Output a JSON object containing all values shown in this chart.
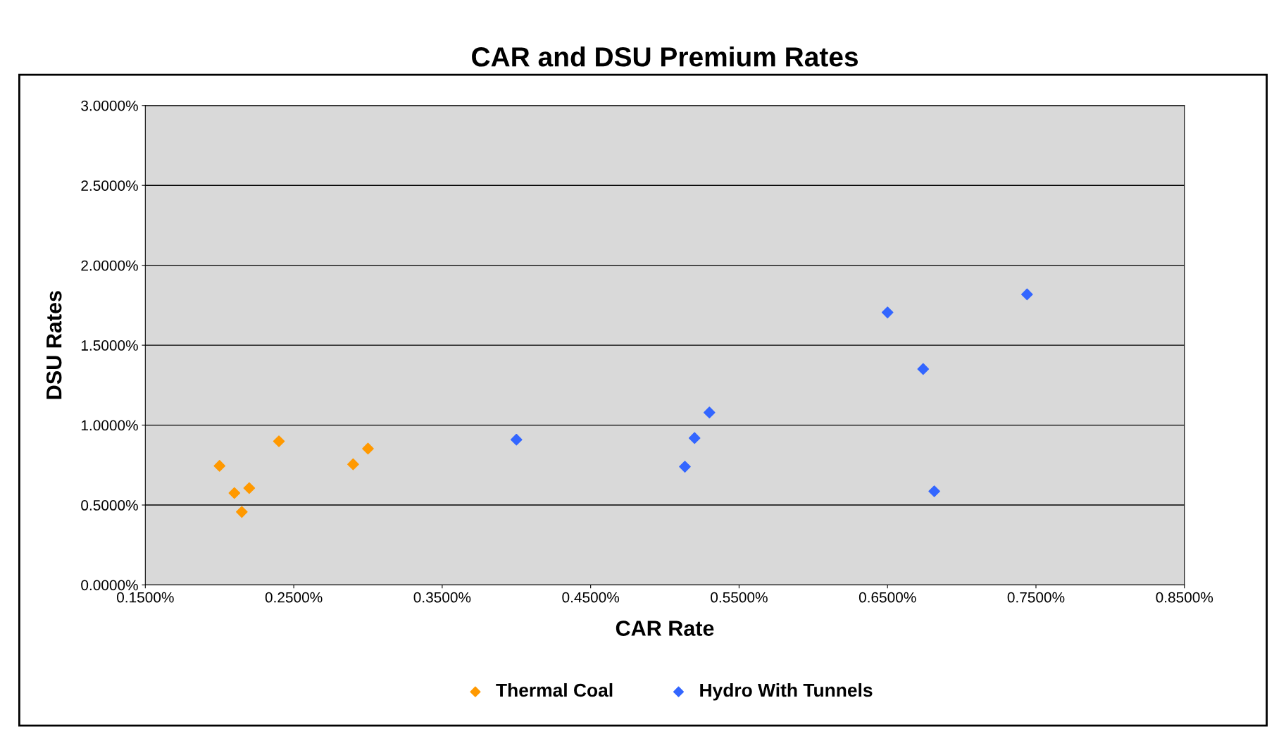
{
  "chart_data": {
    "type": "scatter",
    "title": "CAR and DSU Premium Rates",
    "xlabel": "CAR Rate",
    "ylabel": "DSU Rates",
    "marker": "diamond",
    "grid": "y",
    "legend": "bottom",
    "xlim": [
      0.15,
      0.85
    ],
    "ylim": [
      0,
      3
    ],
    "xticks": [
      {
        "value": 0.15,
        "label": "0.1500%"
      },
      {
        "value": 0.25,
        "label": "0.2500%"
      },
      {
        "value": 0.35,
        "label": "0.3500%"
      },
      {
        "value": 0.45,
        "label": "0.4500%"
      },
      {
        "value": 0.55,
        "label": "0.5500%"
      },
      {
        "value": 0.65,
        "label": "0.6500%"
      },
      {
        "value": 0.75,
        "label": "0.7500%"
      },
      {
        "value": 0.85,
        "label": "0.8500%"
      }
    ],
    "yticks": [
      {
        "value": 0,
        "label": "0.0000%"
      },
      {
        "value": 0.5,
        "label": "0.5000%"
      },
      {
        "value": 1,
        "label": "1.0000%"
      },
      {
        "value": 1.5,
        "label": "1.5000%"
      },
      {
        "value": 2,
        "label": "2.0000%"
      },
      {
        "value": 2.5,
        "label": "2.5000%"
      },
      {
        "value": 3,
        "label": "3.0000%"
      }
    ],
    "series": [
      {
        "name": "Thermal Coal",
        "color": "#ff9900",
        "x": [
          0.2,
          0.21,
          0.22,
          0.215,
          0.24,
          0.29,
          0.3
        ],
        "values": [
          0.745,
          0.575,
          0.606,
          0.457,
          0.899,
          0.755,
          0.853
        ]
      },
      {
        "name": "Hydro With Tunnels",
        "color": "#3366ff",
        "x": [
          0.4,
          0.5135,
          0.52,
          0.53,
          0.65,
          0.674,
          0.6815,
          0.744
        ],
        "values": [
          0.909,
          0.74,
          0.919,
          1.079,
          1.705,
          1.351,
          0.586,
          1.818
        ]
      }
    ]
  }
}
